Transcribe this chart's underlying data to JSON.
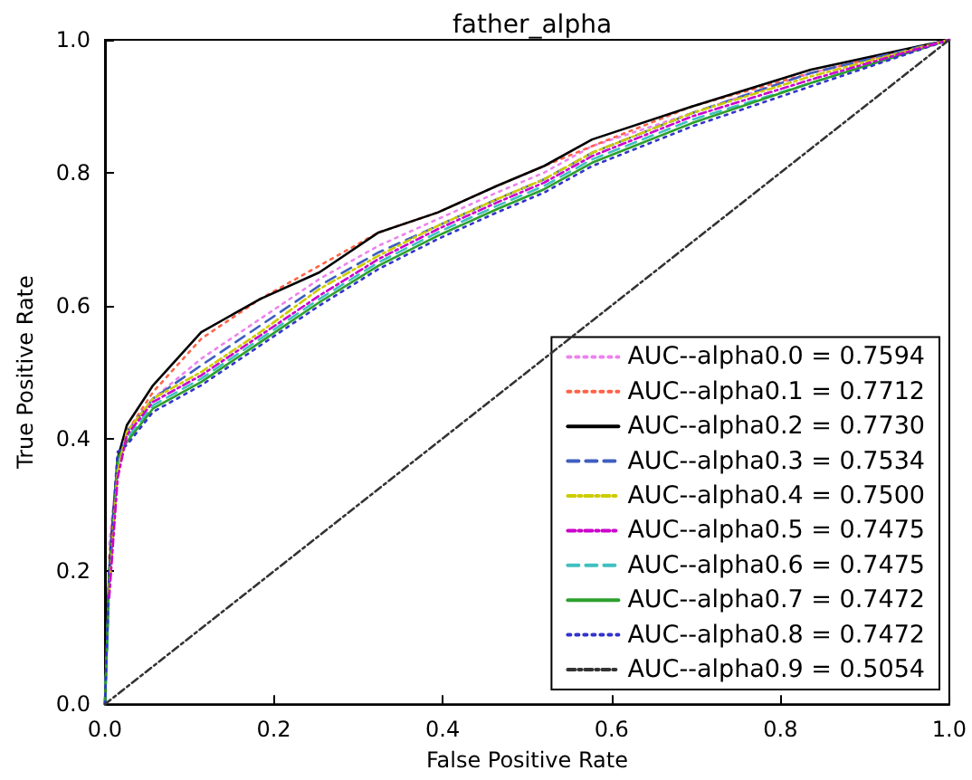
{
  "chart_data": {
    "type": "line",
    "title": "father_alpha",
    "xlabel": "False Positive Rate",
    "ylabel": "True Positive Rate",
    "x": [
      0,
      0.005,
      0.015,
      0.026,
      0.057,
      0.114,
      0.184,
      0.254,
      0.324,
      0.394,
      0.464,
      0.52,
      0.577,
      0.696,
      0.836,
      1
    ],
    "series": [
      {
        "name": "AUC--alpha0.0 = 0.7594",
        "color": "#ee82ee",
        "line_style": "dotted",
        "values": [
          null,
          0.24,
          0.36,
          0.41,
          0.46,
          0.52,
          0.58,
          0.64,
          0.69,
          0.73,
          0.77,
          0.8,
          0.84,
          0.89,
          0.95,
          1
        ]
      },
      {
        "name": "AUC--alpha0.1 = 0.7712",
        "color": "#ff6347",
        "line_style": "dotted",
        "values": [
          null,
          0.22,
          0.36,
          0.41,
          0.47,
          0.55,
          0.61,
          0.66,
          0.71,
          0.74,
          0.78,
          0.81,
          0.84,
          0.9,
          0.95,
          1
        ]
      },
      {
        "name": "AUC--alpha0.2 = 0.7730",
        "color": "#000000",
        "line_style": "solid",
        "values": [
          0,
          0.2,
          0.37,
          0.42,
          0.48,
          0.56,
          0.61,
          0.65,
          0.71,
          0.74,
          0.78,
          0.81,
          0.85,
          0.9,
          0.955,
          1
        ]
      },
      {
        "name": "AUC--alpha0.3 = 0.7534",
        "color": "#3f5fbf",
        "line_style": "dashed",
        "values": [
          0,
          0.18,
          0.36,
          0.41,
          0.46,
          0.51,
          0.57,
          0.63,
          0.68,
          0.72,
          0.76,
          0.79,
          0.83,
          0.89,
          0.95,
          1
        ]
      },
      {
        "name": "AUC--alpha0.4 = 0.7500",
        "color": "#cccc00",
        "line_style": "dashdot",
        "values": [
          null,
          0.17,
          0.35,
          0.41,
          0.46,
          0.5,
          0.56,
          0.625,
          0.675,
          0.72,
          0.76,
          0.79,
          0.83,
          0.89,
          0.945,
          1
        ]
      },
      {
        "name": "AUC--alpha0.5 = 0.7475",
        "color": "#cc00cc",
        "line_style": "dashdot",
        "values": [
          null,
          0.16,
          0.34,
          0.405,
          0.455,
          0.495,
          0.555,
          0.615,
          0.67,
          0.715,
          0.755,
          0.785,
          0.825,
          0.885,
          0.94,
          1
        ]
      },
      {
        "name": "AUC--alpha0.6 = 0.7475",
        "color": "#40c0c0",
        "line_style": "dashed",
        "values": [
          0,
          0.18,
          0.36,
          0.4,
          0.45,
          0.49,
          0.55,
          0.61,
          0.665,
          0.71,
          0.75,
          0.78,
          0.82,
          0.88,
          0.935,
          1
        ]
      },
      {
        "name": "AUC--alpha0.7 = 0.7472",
        "color": "#2ca02c",
        "line_style": "solid",
        "values": [
          0,
          0.19,
          0.37,
          0.395,
          0.445,
          0.485,
          0.545,
          0.605,
          0.66,
          0.705,
          0.745,
          0.775,
          0.815,
          0.875,
          0.935,
          1
        ]
      },
      {
        "name": "AUC--alpha0.8 = 0.7472",
        "color": "#3333cc",
        "line_style": "dotted",
        "values": [
          0,
          0.2,
          0.38,
          0.39,
          0.44,
          0.48,
          0.54,
          0.6,
          0.655,
          0.7,
          0.74,
          0.77,
          0.81,
          0.87,
          0.93,
          1
        ]
      },
      {
        "name": "AUC--alpha0.9 = 0.5054",
        "color": "#333333",
        "line_style": "dashdot",
        "x": [
          0,
          1
        ],
        "values": [
          0,
          1
        ]
      }
    ],
    "xlim": [
      0,
      1
    ],
    "ylim": [
      0,
      1
    ],
    "xticks": [
      {
        "value": 0,
        "label": "0.0"
      },
      {
        "value": 0.2,
        "label": "0.2"
      },
      {
        "value": 0.4,
        "label": "0.4"
      },
      {
        "value": 0.6,
        "label": "0.6"
      },
      {
        "value": 0.8,
        "label": "0.8"
      },
      {
        "value": 1,
        "label": "1.0"
      }
    ],
    "yticks": [
      {
        "value": 0,
        "label": "0.0"
      },
      {
        "value": 0.2,
        "label": "0.2"
      },
      {
        "value": 0.4,
        "label": "0.4"
      },
      {
        "value": 0.6,
        "label": "0.6"
      },
      {
        "value": 0.8,
        "label": "0.8"
      },
      {
        "value": 1,
        "label": "1.0"
      }
    ],
    "legend": "bottom right",
    "marker": "none",
    "grid": false
  }
}
